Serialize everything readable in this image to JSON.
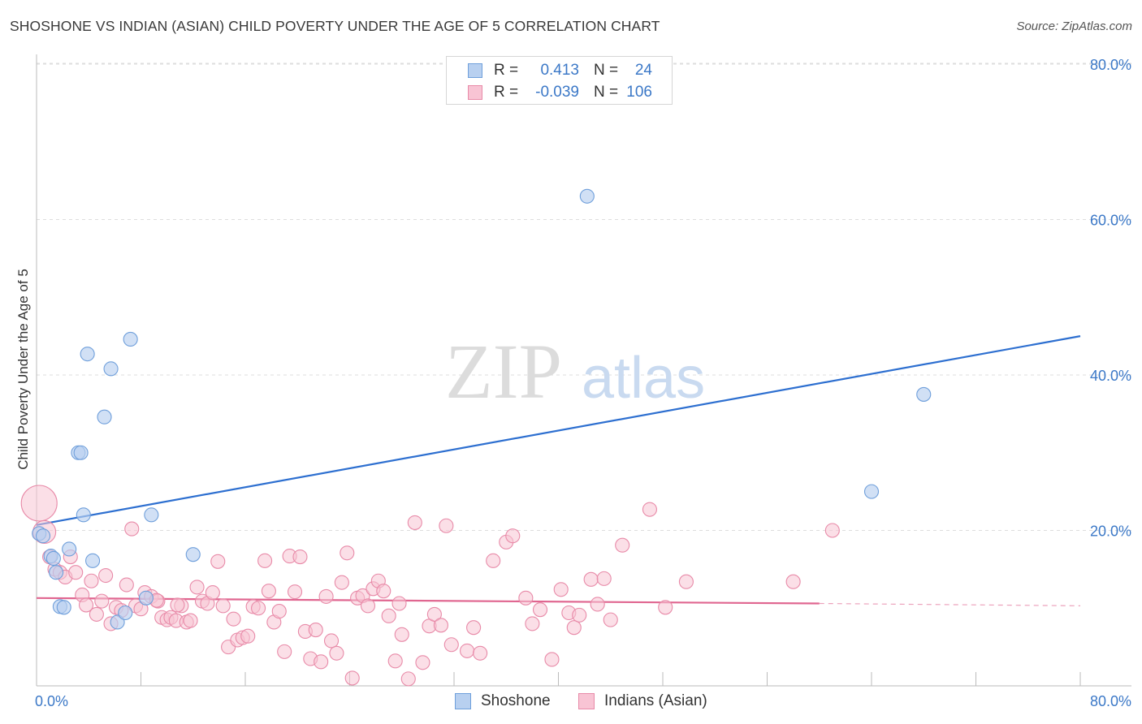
{
  "header": {
    "title": "SHOSHONE VS INDIAN (ASIAN) CHILD POVERTY UNDER THE AGE OF 5 CORRELATION CHART",
    "source": "Source: ZipAtlas.com"
  },
  "watermark": {
    "zip": "ZIP",
    "atlas": "atlas"
  },
  "legend": {
    "rows": [
      {
        "r_label": "R =",
        "r_value": "0.413",
        "n_label": "N =",
        "n_value": "24"
      },
      {
        "r_label": "R =",
        "r_value": "-0.039",
        "n_label": "N =",
        "n_value": "106"
      }
    ]
  },
  "bottom_legend": {
    "series1": "Shoshone",
    "series2": "Indians (Asian)"
  },
  "colors": {
    "shoshone_fill": "#b8d0f0",
    "shoshone_stroke": "#6f9fdb",
    "shoshone_line": "#2d6fd0",
    "indian_fill": "#f8c4d4",
    "indian_stroke": "#e88aa8",
    "indian_line": "#e06690",
    "tick_text": "#3b78c7",
    "grid": "#dddddd"
  },
  "chart_data": {
    "type": "scatter",
    "title": "SHOSHONE VS INDIAN (ASIAN) CHILD POVERTY UNDER THE AGE OF 5 CORRELATION CHART",
    "xlabel": "",
    "ylabel": "Child Poverty Under the Age of 5",
    "xlim": [
      0,
      80
    ],
    "ylim": [
      0,
      80
    ],
    "x_tick_labels": [
      "0.0%",
      "80.0%"
    ],
    "y_tick_labels": [
      "20.0%",
      "40.0%",
      "60.0%",
      "80.0%"
    ],
    "y_ticks": [
      20,
      40,
      60,
      80
    ],
    "grid": true,
    "legend_position": "top-center",
    "series": [
      {
        "name": "Shoshone",
        "R": 0.413,
        "N": 24,
        "points": [
          [
            0.2,
            19.6
          ],
          [
            0.5,
            19.3
          ],
          [
            1.1,
            16.7
          ],
          [
            1.3,
            16.4
          ],
          [
            1.5,
            14.6
          ],
          [
            1.8,
            10.2
          ],
          [
            2.1,
            10.1
          ],
          [
            2.5,
            17.6
          ],
          [
            3.2,
            30.0
          ],
          [
            3.4,
            30.0
          ],
          [
            3.6,
            22.0
          ],
          [
            3.9,
            42.7
          ],
          [
            4.3,
            16.1
          ],
          [
            5.2,
            34.6
          ],
          [
            5.7,
            40.8
          ],
          [
            6.2,
            8.2
          ],
          [
            6.8,
            9.4
          ],
          [
            7.2,
            44.6
          ],
          [
            8.4,
            11.3
          ],
          [
            8.8,
            22.0
          ],
          [
            12.0,
            16.9
          ],
          [
            42.2,
            63.0
          ],
          [
            64.0,
            25.0
          ],
          [
            68.0,
            37.5
          ]
        ],
        "trendline": {
          "x": [
            0,
            80
          ],
          "y": [
            20.7,
            45.0
          ]
        }
      },
      {
        "name": "Indians (Asian)",
        "R": -0.039,
        "N": 106,
        "points": [
          [
            0.2,
            23.5
          ],
          [
            0.6,
            19.8
          ],
          [
            1.0,
            16.6
          ],
          [
            1.4,
            15.0
          ],
          [
            1.8,
            14.6
          ],
          [
            2.2,
            14.0
          ],
          [
            2.6,
            16.6
          ],
          [
            3.0,
            14.6
          ],
          [
            3.5,
            11.7
          ],
          [
            3.8,
            10.4
          ],
          [
            4.2,
            13.5
          ],
          [
            4.6,
            9.2
          ],
          [
            5.0,
            10.9
          ],
          [
            5.3,
            14.2
          ],
          [
            5.7,
            8.0
          ],
          [
            6.1,
            10.1
          ],
          [
            6.5,
            9.7
          ],
          [
            6.9,
            13.0
          ],
          [
            7.3,
            20.2
          ],
          [
            7.6,
            10.3
          ],
          [
            8.0,
            9.9
          ],
          [
            8.3,
            12.0
          ],
          [
            8.8,
            11.5
          ],
          [
            9.3,
            10.9
          ],
          [
            9.6,
            8.8
          ],
          [
            10.0,
            8.5
          ],
          [
            10.3,
            8.8
          ],
          [
            10.7,
            8.4
          ],
          [
            11.1,
            10.3
          ],
          [
            11.5,
            8.2
          ],
          [
            11.8,
            8.4
          ],
          [
            12.3,
            12.7
          ],
          [
            12.7,
            10.9
          ],
          [
            13.1,
            10.6
          ],
          [
            13.5,
            12.0
          ],
          [
            13.9,
            16.0
          ],
          [
            14.3,
            10.3
          ],
          [
            14.7,
            5.0
          ],
          [
            15.1,
            8.6
          ],
          [
            15.4,
            5.9
          ],
          [
            15.8,
            6.2
          ],
          [
            16.2,
            6.4
          ],
          [
            16.6,
            10.2
          ],
          [
            17.0,
            10.0
          ],
          [
            17.5,
            16.1
          ],
          [
            17.8,
            12.2
          ],
          [
            18.2,
            8.2
          ],
          [
            18.6,
            9.6
          ],
          [
            19.0,
            4.4
          ],
          [
            19.4,
            16.7
          ],
          [
            19.8,
            12.1
          ],
          [
            20.2,
            16.6
          ],
          [
            20.6,
            7.0
          ],
          [
            21.0,
            3.5
          ],
          [
            21.4,
            7.2
          ],
          [
            21.8,
            3.1
          ],
          [
            22.2,
            11.5
          ],
          [
            22.6,
            5.8
          ],
          [
            23.0,
            4.2
          ],
          [
            23.4,
            13.3
          ],
          [
            23.8,
            17.1
          ],
          [
            24.2,
            1.0
          ],
          [
            24.6,
            11.3
          ],
          [
            25.0,
            11.6
          ],
          [
            25.4,
            10.3
          ],
          [
            25.8,
            12.5
          ],
          [
            26.2,
            13.5
          ],
          [
            26.6,
            12.2
          ],
          [
            27.0,
            9.0
          ],
          [
            27.5,
            3.2
          ],
          [
            28.0,
            6.6
          ],
          [
            28.5,
            0.9
          ],
          [
            29.0,
            21.0
          ],
          [
            29.6,
            3.0
          ],
          [
            30.1,
            7.7
          ],
          [
            30.5,
            9.2
          ],
          [
            31.0,
            7.8
          ],
          [
            31.4,
            20.6
          ],
          [
            31.8,
            5.3
          ],
          [
            33.0,
            4.5
          ],
          [
            34.0,
            4.2
          ],
          [
            35.0,
            16.1
          ],
          [
            36.0,
            18.5
          ],
          [
            36.5,
            19.3
          ],
          [
            37.5,
            11.3
          ],
          [
            38.0,
            8.0
          ],
          [
            38.6,
            9.8
          ],
          [
            39.5,
            3.4
          ],
          [
            40.2,
            12.4
          ],
          [
            40.8,
            9.4
          ],
          [
            41.2,
            7.5
          ],
          [
            41.6,
            9.1
          ],
          [
            42.5,
            13.7
          ],
          [
            43.0,
            10.5
          ],
          [
            43.5,
            13.8
          ],
          [
            44.0,
            8.5
          ],
          [
            44.9,
            18.1
          ],
          [
            47.0,
            22.7
          ],
          [
            48.2,
            10.1
          ],
          [
            49.8,
            13.4
          ],
          [
            58.0,
            13.4
          ],
          [
            61.0,
            20.0
          ],
          [
            9.2,
            11.0
          ],
          [
            10.8,
            10.4
          ],
          [
            27.8,
            10.6
          ],
          [
            33.5,
            7.5
          ]
        ],
        "trendline": {
          "x": [
            0,
            60
          ],
          "y": [
            11.3,
            10.6
          ],
          "dashed_extension": {
            "x": [
              60,
              80
            ],
            "y": [
              10.6,
              10.3
            ]
          }
        }
      }
    ]
  }
}
